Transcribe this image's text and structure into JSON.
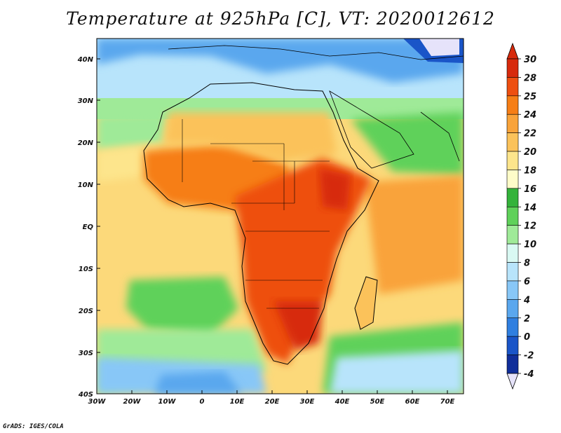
{
  "title": "Temperature at 925hPa [C], VT: 2020012612",
  "credit": "GrADS: IGES/COLA",
  "lat_labels": [
    "40N",
    "30N",
    "20N",
    "10N",
    "EQ",
    "10S",
    "20S",
    "30S",
    "40S"
  ],
  "lon_labels": [
    "30W",
    "20W",
    "10W",
    "0",
    "10E",
    "20E",
    "30E",
    "40E",
    "50E",
    "60E",
    "70E"
  ],
  "colorbar": {
    "labels": [
      "30",
      "28",
      "25",
      "24",
      "22",
      "20",
      "18",
      "16",
      "14",
      "12",
      "10",
      "8",
      "6",
      "4",
      "2",
      "0",
      "-2",
      "-4"
    ],
    "colors": [
      "#d72a0c",
      "#ee4f10",
      "#f67e16",
      "#f9a33a",
      "#fbc25a",
      "#fde58c",
      "#fefcc9",
      "#34b33b",
      "#5fd15a",
      "#9fea98",
      "#d9f9f3",
      "#b8e4fb",
      "#88c7f7",
      "#5aa7ee",
      "#2f7fe0",
      "#1a55c8",
      "#102e9a",
      "#e6e3fa"
    ]
  },
  "icons": [
    "temperature-map",
    "coastline-outline",
    "country-borders"
  ]
}
